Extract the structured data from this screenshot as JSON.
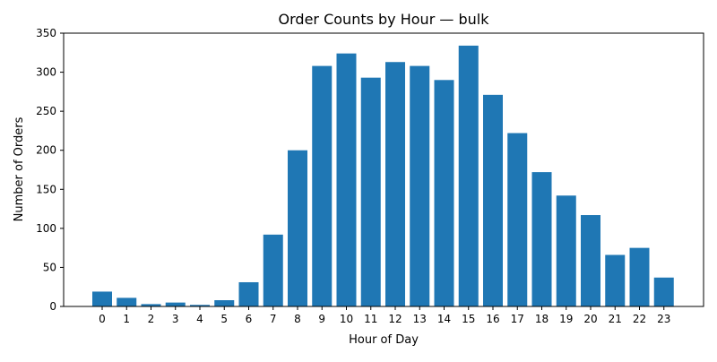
{
  "chart_data": {
    "type": "bar",
    "title": "Order Counts by Hour — bulk",
    "xlabel": "Hour of Day",
    "ylabel": "Number of Orders",
    "categories": [
      "0",
      "1",
      "2",
      "3",
      "4",
      "5",
      "6",
      "7",
      "8",
      "9",
      "10",
      "11",
      "12",
      "13",
      "14",
      "15",
      "16",
      "17",
      "18",
      "19",
      "20",
      "21",
      "22",
      "23"
    ],
    "values": [
      19,
      11,
      3,
      5,
      2,
      8,
      31,
      92,
      200,
      308,
      324,
      293,
      313,
      308,
      290,
      334,
      271,
      222,
      172,
      142,
      117,
      66,
      75,
      37
    ],
    "ylim": [
      0,
      350
    ],
    "yticks": [
      0,
      50,
      100,
      150,
      200,
      250,
      300,
      350
    ],
    "bar_color": "#1f77b4",
    "grid": false,
    "legend": "none"
  }
}
